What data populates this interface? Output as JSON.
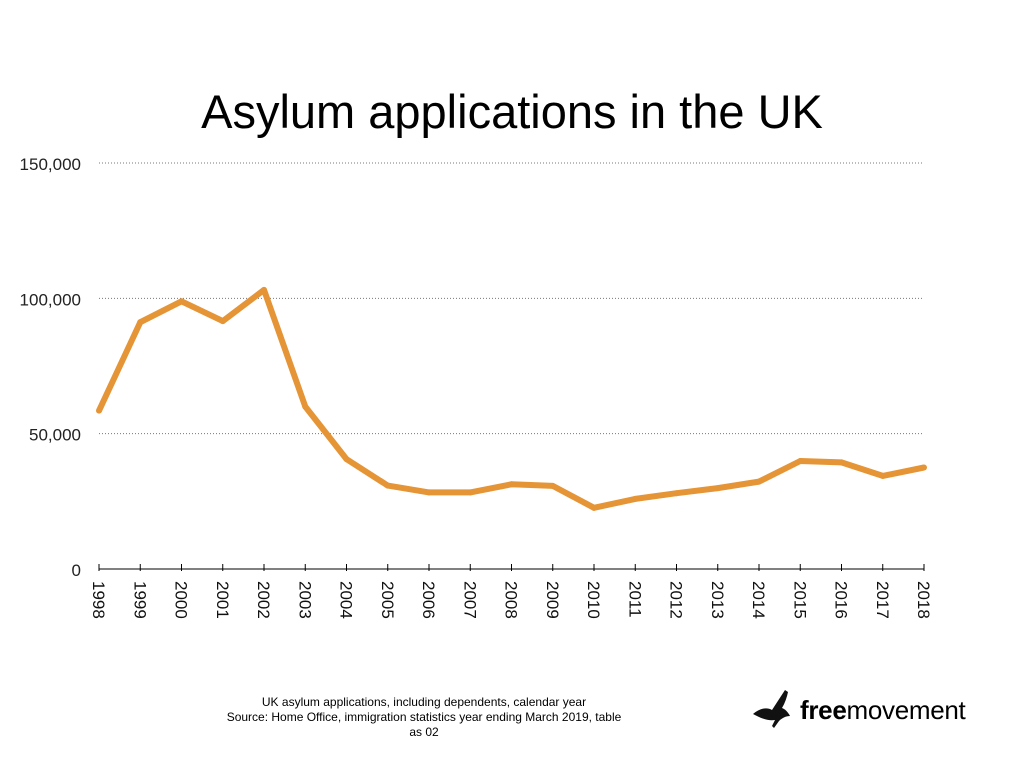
{
  "chart_data": {
    "type": "line",
    "title": "Asylum applications in the UK",
    "xlabel": "",
    "ylabel": "",
    "x": [
      "1998",
      "1999",
      "2000",
      "2001",
      "2002",
      "2003",
      "2004",
      "2005",
      "2006",
      "2007",
      "2008",
      "2009",
      "2010",
      "2011",
      "2012",
      "2013",
      "2014",
      "2015",
      "2016",
      "2017",
      "2018"
    ],
    "series": [
      {
        "values": [
          58500,
          91200,
          98900,
          91600,
          103100,
          60000,
          40600,
          30800,
          28300,
          28300,
          31300,
          30700,
          22600,
          25900,
          28000,
          29900,
          32300,
          39900,
          39400,
          34400,
          37500
        ]
      }
    ],
    "yticks": [
      0,
      50000,
      100000,
      150000
    ],
    "ytick_labels": [
      "0",
      "50,000",
      "100,000",
      "150,000"
    ],
    "ylim": [
      0,
      150000
    ],
    "grid": "horizontal dotted",
    "line_color": "#e59436"
  },
  "caption": {
    "line1": "UK asylum applications, including dependents, calendar year",
    "line2": "Source: Home Office, immigration statistics year ending March 2019, table as 02"
  },
  "logo": {
    "bold": "free",
    "rest": "movement",
    "icon": "bird-icon"
  }
}
